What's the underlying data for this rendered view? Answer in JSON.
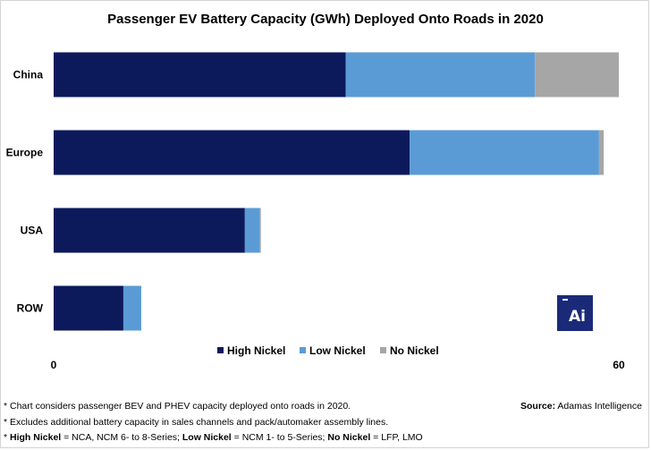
{
  "chart_data": {
    "type": "bar",
    "orientation": "horizontal",
    "stacked": true,
    "title": "Passenger EV Battery Capacity (GWh) Deployed Onto Roads in 2020",
    "categories": [
      "China",
      "Europe",
      "USA",
      "ROW"
    ],
    "series": [
      {
        "name": "High Nickel",
        "color": "#0c1a5c",
        "values": [
          31.0,
          37.8,
          20.3,
          7.4
        ]
      },
      {
        "name": "Low Nickel",
        "color": "#5b9bd5",
        "values": [
          20.1,
          20.1,
          1.6,
          1.9
        ]
      },
      {
        "name": "No Nickel",
        "color": "#a6a6a6",
        "values": [
          8.9,
          0.5,
          0.1,
          0.0
        ]
      }
    ],
    "xlim": [
      0,
      60
    ],
    "xticks": [
      "0",
      "60"
    ],
    "xlabel": "",
    "ylabel": "",
    "grid": false,
    "legend_position": "bottom"
  },
  "footnotes": [
    "* Chart considers passenger BEV and PHEV capacity deployed onto roads in 2020.",
    "* Excludes additional battery capacity in sales channels and pack/automaker assembly lines."
  ],
  "definitions": {
    "prefix": "* ",
    "high_label": "High Nickel",
    "high_def": " = NCA, NCM 6- to 8-Series; ",
    "low_label": "Low Nickel",
    "low_def": " = NCM 1- to 5-Series; ",
    "no_label": "No Nickel",
    "no_def": " = LFP, LMO"
  },
  "source": {
    "label": "Source:",
    "text": " Adamas Intelligence"
  },
  "logo": {
    "text": "Ai",
    "color": "#1b2a78"
  }
}
